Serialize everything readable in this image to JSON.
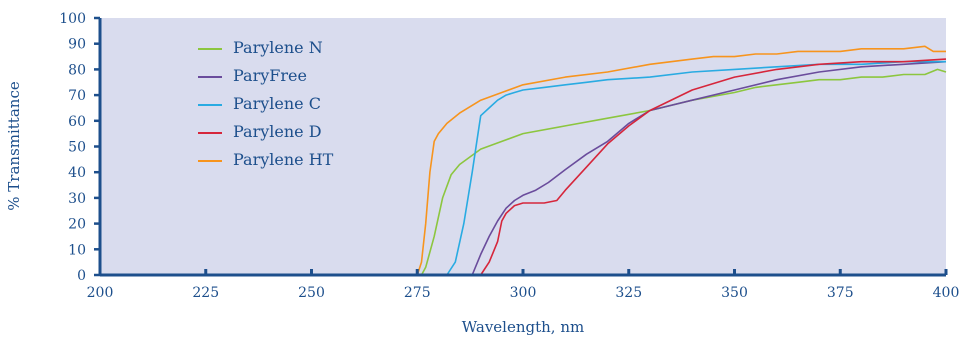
{
  "chart_data": {
    "type": "line",
    "title": "",
    "xlabel": "Wavelength, nm",
    "ylabel": "% Transmittance",
    "xlim": [
      200,
      400
    ],
    "ylim": [
      0,
      100
    ],
    "xticks": [
      200,
      225,
      250,
      275,
      300,
      325,
      350,
      375,
      400
    ],
    "yticks": [
      0,
      10,
      20,
      30,
      40,
      50,
      60,
      70,
      80,
      90,
      100
    ],
    "plot_background": "#d9dcee",
    "axis_color": "#1d4f8c",
    "legend_position": "upper-left",
    "series": [
      {
        "name": "Parylene N",
        "color": "#8cc63f",
        "x": [
          200,
          276,
          277,
          279,
          281,
          283,
          285,
          290,
          295,
          300,
          310,
          320,
          330,
          340,
          350,
          355,
          360,
          365,
          370,
          375,
          380,
          385,
          390,
          395,
          398,
          400
        ],
        "y": [
          0,
          0,
          3,
          15,
          30,
          39,
          43,
          49,
          52,
          55,
          58,
          61,
          64,
          68,
          71,
          73,
          74,
          75,
          76,
          76,
          77,
          77,
          78,
          78,
          80,
          79
        ]
      },
      {
        "name": "ParyFree",
        "color": "#6a4c9c",
        "x": [
          200,
          288,
          290,
          292,
          294,
          296,
          298,
          300,
          303,
          306,
          310,
          315,
          320,
          325,
          330,
          340,
          350,
          360,
          370,
          380,
          390,
          400
        ],
        "y": [
          0,
          0,
          8,
          15,
          21,
          26,
          29,
          31,
          33,
          36,
          41,
          47,
          52,
          59,
          64,
          68,
          72,
          76,
          79,
          81,
          82,
          83
        ]
      },
      {
        "name": "Parylene C",
        "color": "#29abe2",
        "x": [
          200,
          282,
          284,
          286,
          288,
          290,
          292,
          294,
          296,
          298,
          300,
          305,
          310,
          315,
          320,
          330,
          340,
          350,
          360,
          370,
          380,
          390,
          400
        ],
        "y": [
          0,
          0,
          5,
          20,
          40,
          62,
          65,
          68,
          70,
          71,
          72,
          73,
          74,
          75,
          76,
          77,
          79,
          80,
          81,
          82,
          82,
          83,
          83
        ]
      },
      {
        "name": "Parylene D",
        "color": "#d6263b",
        "x": [
          200,
          290,
          292,
          294,
          295,
          296,
          298,
          300,
          305,
          308,
          310,
          315,
          320,
          325,
          330,
          340,
          350,
          360,
          370,
          380,
          390,
          400
        ],
        "y": [
          0,
          0,
          5,
          13,
          21,
          24,
          27,
          28,
          28,
          29,
          33,
          42,
          51,
          58,
          64,
          72,
          77,
          80,
          82,
          83,
          83,
          84
        ]
      },
      {
        "name": "Parylene HT",
        "color": "#f7941d",
        "x": [
          200,
          275,
          276,
          277,
          278,
          279,
          280,
          282,
          285,
          290,
          295,
          300,
          310,
          320,
          330,
          340,
          345,
          350,
          355,
          360,
          365,
          370,
          375,
          380,
          385,
          390,
          395,
          397,
          400
        ],
        "y": [
          0,
          0,
          5,
          20,
          40,
          52,
          55,
          59,
          63,
          68,
          71,
          74,
          77,
          79,
          82,
          84,
          85,
          85,
          86,
          86,
          87,
          87,
          87,
          88,
          88,
          88,
          89,
          87,
          87
        ]
      }
    ]
  }
}
